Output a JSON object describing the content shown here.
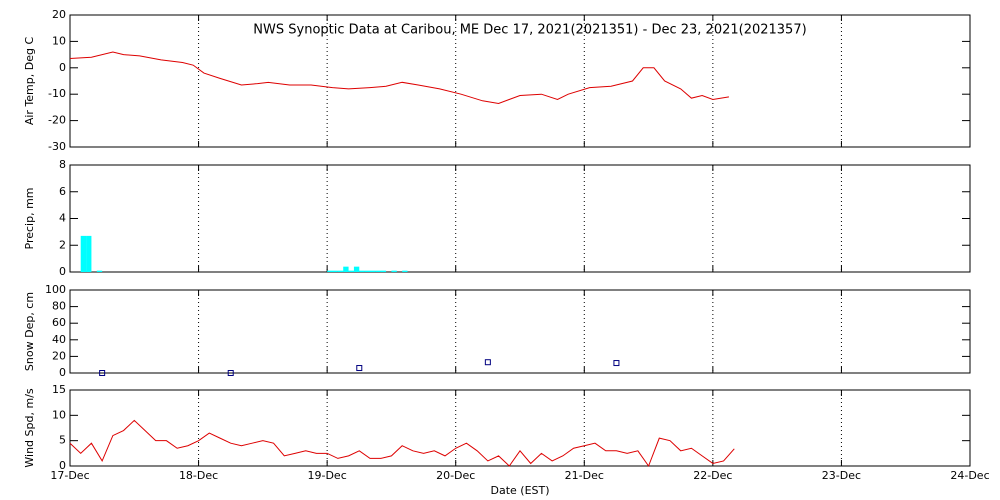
{
  "chart_data": [
    {
      "type": "line",
      "title": "NWS Synoptic Data at Caribou, ME   Dec 17, 2021(2021351) - Dec 23, 2021(2021357)",
      "ylabel": "Air Temp, Deg C",
      "ylim": [
        -30,
        20
      ],
      "yticks": [
        -30,
        -20,
        -10,
        0,
        10,
        20
      ],
      "x": [
        0,
        4,
        8,
        10,
        13,
        17,
        21,
        23,
        25,
        28,
        32,
        35,
        37,
        41,
        45,
        49,
        52,
        56,
        59,
        62,
        65,
        69,
        73,
        77,
        80,
        84,
        88,
        91,
        93,
        97,
        101,
        105,
        107,
        109,
        111,
        114,
        116,
        118,
        120,
        123
      ],
      "series": [
        {
          "color": "#dd0000",
          "values": [
            3.5,
            4,
            6,
            5,
            4.5,
            3,
            2,
            1,
            -2,
            -4,
            -6.5,
            -6,
            -5.5,
            -6.5,
            -6.5,
            -7.5,
            -8,
            -7.5,
            -7,
            -5.5,
            -6.5,
            -8,
            -10,
            -12.5,
            -13.5,
            -10.5,
            -10,
            -12,
            -10,
            -7.5,
            -7,
            -5,
            0,
            0,
            -5,
            -8,
            -11.5,
            -10.5,
            -12,
            -11
          ]
        }
      ]
    },
    {
      "type": "bar",
      "ylabel": "Precip, mm",
      "ylim": [
        0,
        8
      ],
      "yticks": [
        0,
        2,
        4,
        6,
        8
      ],
      "color": "#00ffff",
      "x": [
        2,
        3,
        5,
        48,
        49,
        50,
        51,
        52,
        53,
        54,
        55,
        56,
        57,
        58,
        60,
        62
      ],
      "values": [
        2.7,
        2.7,
        0.1,
        0.1,
        0.1,
        0.1,
        0.4,
        0.1,
        0.4,
        0.1,
        0.1,
        0.1,
        0.1,
        0.1,
        0.1,
        0.1
      ]
    },
    {
      "type": "scatter",
      "ylabel": "Snow Dep, cm",
      "ylim": [
        0,
        100
      ],
      "yticks": [
        0,
        20,
        40,
        60,
        80,
        100
      ],
      "color": "#000080",
      "x": [
        6,
        30,
        54,
        78,
        102
      ],
      "values": [
        0,
        0,
        6,
        13,
        12
      ]
    },
    {
      "type": "line",
      "ylabel": "Wind Spd, m/s",
      "ylim": [
        0,
        15
      ],
      "yticks": [
        0,
        5,
        10,
        15
      ],
      "xlabel": "Date (EST)",
      "xlim": [
        0,
        168
      ],
      "xticks": [
        {
          "value": 0,
          "label": "17-Dec"
        },
        {
          "value": 24,
          "label": "18-Dec"
        },
        {
          "value": 48,
          "label": "19-Dec"
        },
        {
          "value": 72,
          "label": "20-Dec"
        },
        {
          "value": 96,
          "label": "21-Dec"
        },
        {
          "value": 120,
          "label": "22-Dec"
        },
        {
          "value": 144,
          "label": "23-Dec"
        },
        {
          "value": 168,
          "label": "24-Dec"
        }
      ],
      "x": [
        0,
        2,
        4,
        6,
        8,
        10,
        12,
        14,
        16,
        18,
        20,
        22,
        24,
        26,
        28,
        30,
        32,
        34,
        36,
        38,
        40,
        42,
        44,
        46,
        48,
        50,
        52,
        54,
        56,
        58,
        60,
        62,
        64,
        66,
        68,
        70,
        72,
        74,
        76,
        78,
        80,
        82,
        84,
        86,
        88,
        90,
        92,
        94,
        96,
        98,
        100,
        102,
        104,
        106,
        108,
        110,
        112,
        114,
        116,
        118,
        120,
        122,
        124
      ],
      "series": [
        {
          "color": "#dd0000",
          "values": [
            4.5,
            2.5,
            4.5,
            1,
            6,
            7,
            9,
            7,
            5,
            5,
            3.5,
            4,
            5,
            6.5,
            5.5,
            4.5,
            4,
            4.5,
            5,
            4.5,
            2,
            2.5,
            3,
            2.5,
            2.5,
            1.5,
            2,
            3,
            1.5,
            1.5,
            2,
            4,
            3,
            2.5,
            3,
            2,
            3.5,
            4.5,
            3,
            1,
            2,
            0,
            3,
            0.5,
            2.5,
            1,
            2,
            3.5,
            4,
            4.5,
            3,
            3,
            2.5,
            3,
            0,
            5.5,
            5,
            3,
            3.5,
            2,
            0.5,
            1,
            3.4
          ]
        }
      ]
    }
  ]
}
